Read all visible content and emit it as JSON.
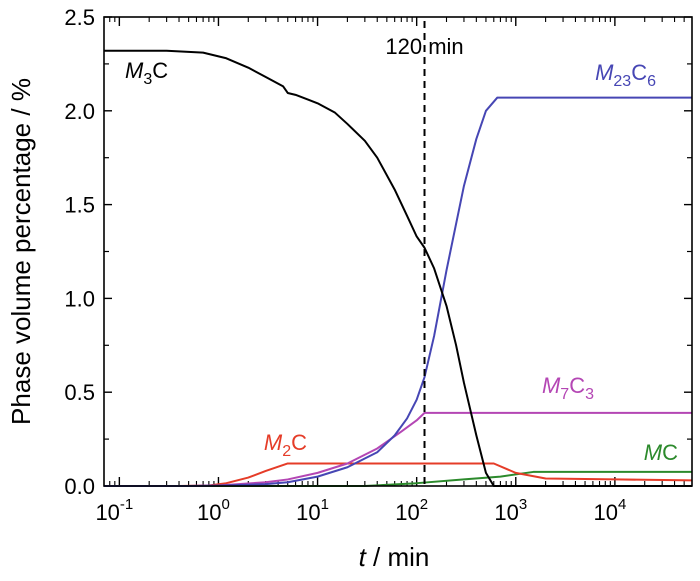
{
  "chart_data": {
    "type": "line",
    "xscale": "log",
    "xlim": [
      0.07,
      60000
    ],
    "ylim": [
      0,
      2.5
    ],
    "xticks": [
      {
        "value": 0.1,
        "base": "10",
        "exp": "-1"
      },
      {
        "value": 1,
        "base": "10",
        "exp": "0"
      },
      {
        "value": 10,
        "base": "10",
        "exp": "1"
      },
      {
        "value": 100,
        "base": "10",
        "exp": "2"
      },
      {
        "value": 1000,
        "base": "10",
        "exp": "3"
      },
      {
        "value": 10000,
        "base": "10",
        "exp": "4"
      }
    ],
    "yticks": [
      "0.0",
      "0.5",
      "1.0",
      "1.5",
      "2.0",
      "2.5"
    ],
    "xlabel": {
      "italic": "t",
      "rest": " / min"
    },
    "ylabel": "Phase volume percentage / %",
    "annotation": {
      "x": 120,
      "label": "120 min"
    },
    "series": [
      {
        "id": "M3C",
        "label": {
          "m": "M",
          "sub": "3",
          "rest": "C"
        },
        "color": "#000000",
        "points": [
          [
            0.07,
            2.32
          ],
          [
            0.3,
            2.32
          ],
          [
            0.7,
            2.31
          ],
          [
            1.2,
            2.28
          ],
          [
            2.0,
            2.23
          ],
          [
            3.0,
            2.18
          ],
          [
            4.5,
            2.13
          ],
          [
            5.0,
            2.095
          ],
          [
            6.0,
            2.085
          ],
          [
            8.0,
            2.06
          ],
          [
            10,
            2.04
          ],
          [
            15,
            1.99
          ],
          [
            20,
            1.93
          ],
          [
            30,
            1.84
          ],
          [
            40,
            1.75
          ],
          [
            60,
            1.58
          ],
          [
            80,
            1.44
          ],
          [
            100,
            1.33
          ],
          [
            120,
            1.27
          ],
          [
            150,
            1.16
          ],
          [
            200,
            0.96
          ],
          [
            250,
            0.75
          ],
          [
            300,
            0.55
          ],
          [
            400,
            0.27
          ],
          [
            500,
            0.07
          ],
          [
            600,
            0.0
          ],
          [
            60000,
            0.0
          ]
        ]
      },
      {
        "id": "M23C6",
        "label": {
          "m": "M",
          "sub": "23",
          "rest": "C",
          "sub2": "6"
        },
        "color": "#4646b4",
        "points": [
          [
            0.07,
            0.0
          ],
          [
            0.5,
            0.0
          ],
          [
            1,
            0.002
          ],
          [
            3,
            0.01
          ],
          [
            5,
            0.02
          ],
          [
            10,
            0.05
          ],
          [
            20,
            0.1
          ],
          [
            40,
            0.18
          ],
          [
            60,
            0.27
          ],
          [
            80,
            0.36
          ],
          [
            100,
            0.46
          ],
          [
            120,
            0.58
          ],
          [
            150,
            0.8
          ],
          [
            200,
            1.15
          ],
          [
            300,
            1.6
          ],
          [
            400,
            1.85
          ],
          [
            500,
            2.0
          ],
          [
            650,
            2.07
          ],
          [
            60000,
            2.07
          ]
        ]
      },
      {
        "id": "M7C3",
        "label": {
          "m": "M",
          "sub": "7",
          "rest": "C",
          "sub2": "3"
        },
        "color": "#b446b4",
        "points": [
          [
            0.07,
            0.0
          ],
          [
            0.5,
            0.0
          ],
          [
            1,
            0.003
          ],
          [
            3,
            0.02
          ],
          [
            5,
            0.035
          ],
          [
            10,
            0.07
          ],
          [
            20,
            0.12
          ],
          [
            40,
            0.2
          ],
          [
            70,
            0.29
          ],
          [
            100,
            0.35
          ],
          [
            120,
            0.39
          ],
          [
            60000,
            0.39
          ]
        ]
      },
      {
        "id": "M2C",
        "label": {
          "m": "M",
          "sub": "2",
          "rest": "C"
        },
        "color": "#e53c28",
        "points": [
          [
            0.07,
            0.0
          ],
          [
            0.4,
            0.0
          ],
          [
            0.8,
            0.003
          ],
          [
            1.2,
            0.015
          ],
          [
            2,
            0.045
          ],
          [
            3,
            0.08
          ],
          [
            5,
            0.12
          ],
          [
            100,
            0.12
          ],
          [
            600,
            0.12
          ],
          [
            1000,
            0.07
          ],
          [
            2000,
            0.04
          ],
          [
            10000,
            0.035
          ],
          [
            60000,
            0.03
          ]
        ]
      },
      {
        "id": "MC",
        "label": {
          "m": "M",
          "rest": "C"
        },
        "color": "#2c8a2c",
        "points": [
          [
            0.07,
            0.0
          ],
          [
            30,
            0.0
          ],
          [
            100,
            0.015
          ],
          [
            300,
            0.035
          ],
          [
            700,
            0.05
          ],
          [
            1500,
            0.075
          ],
          [
            60000,
            0.075
          ]
        ]
      }
    ]
  }
}
